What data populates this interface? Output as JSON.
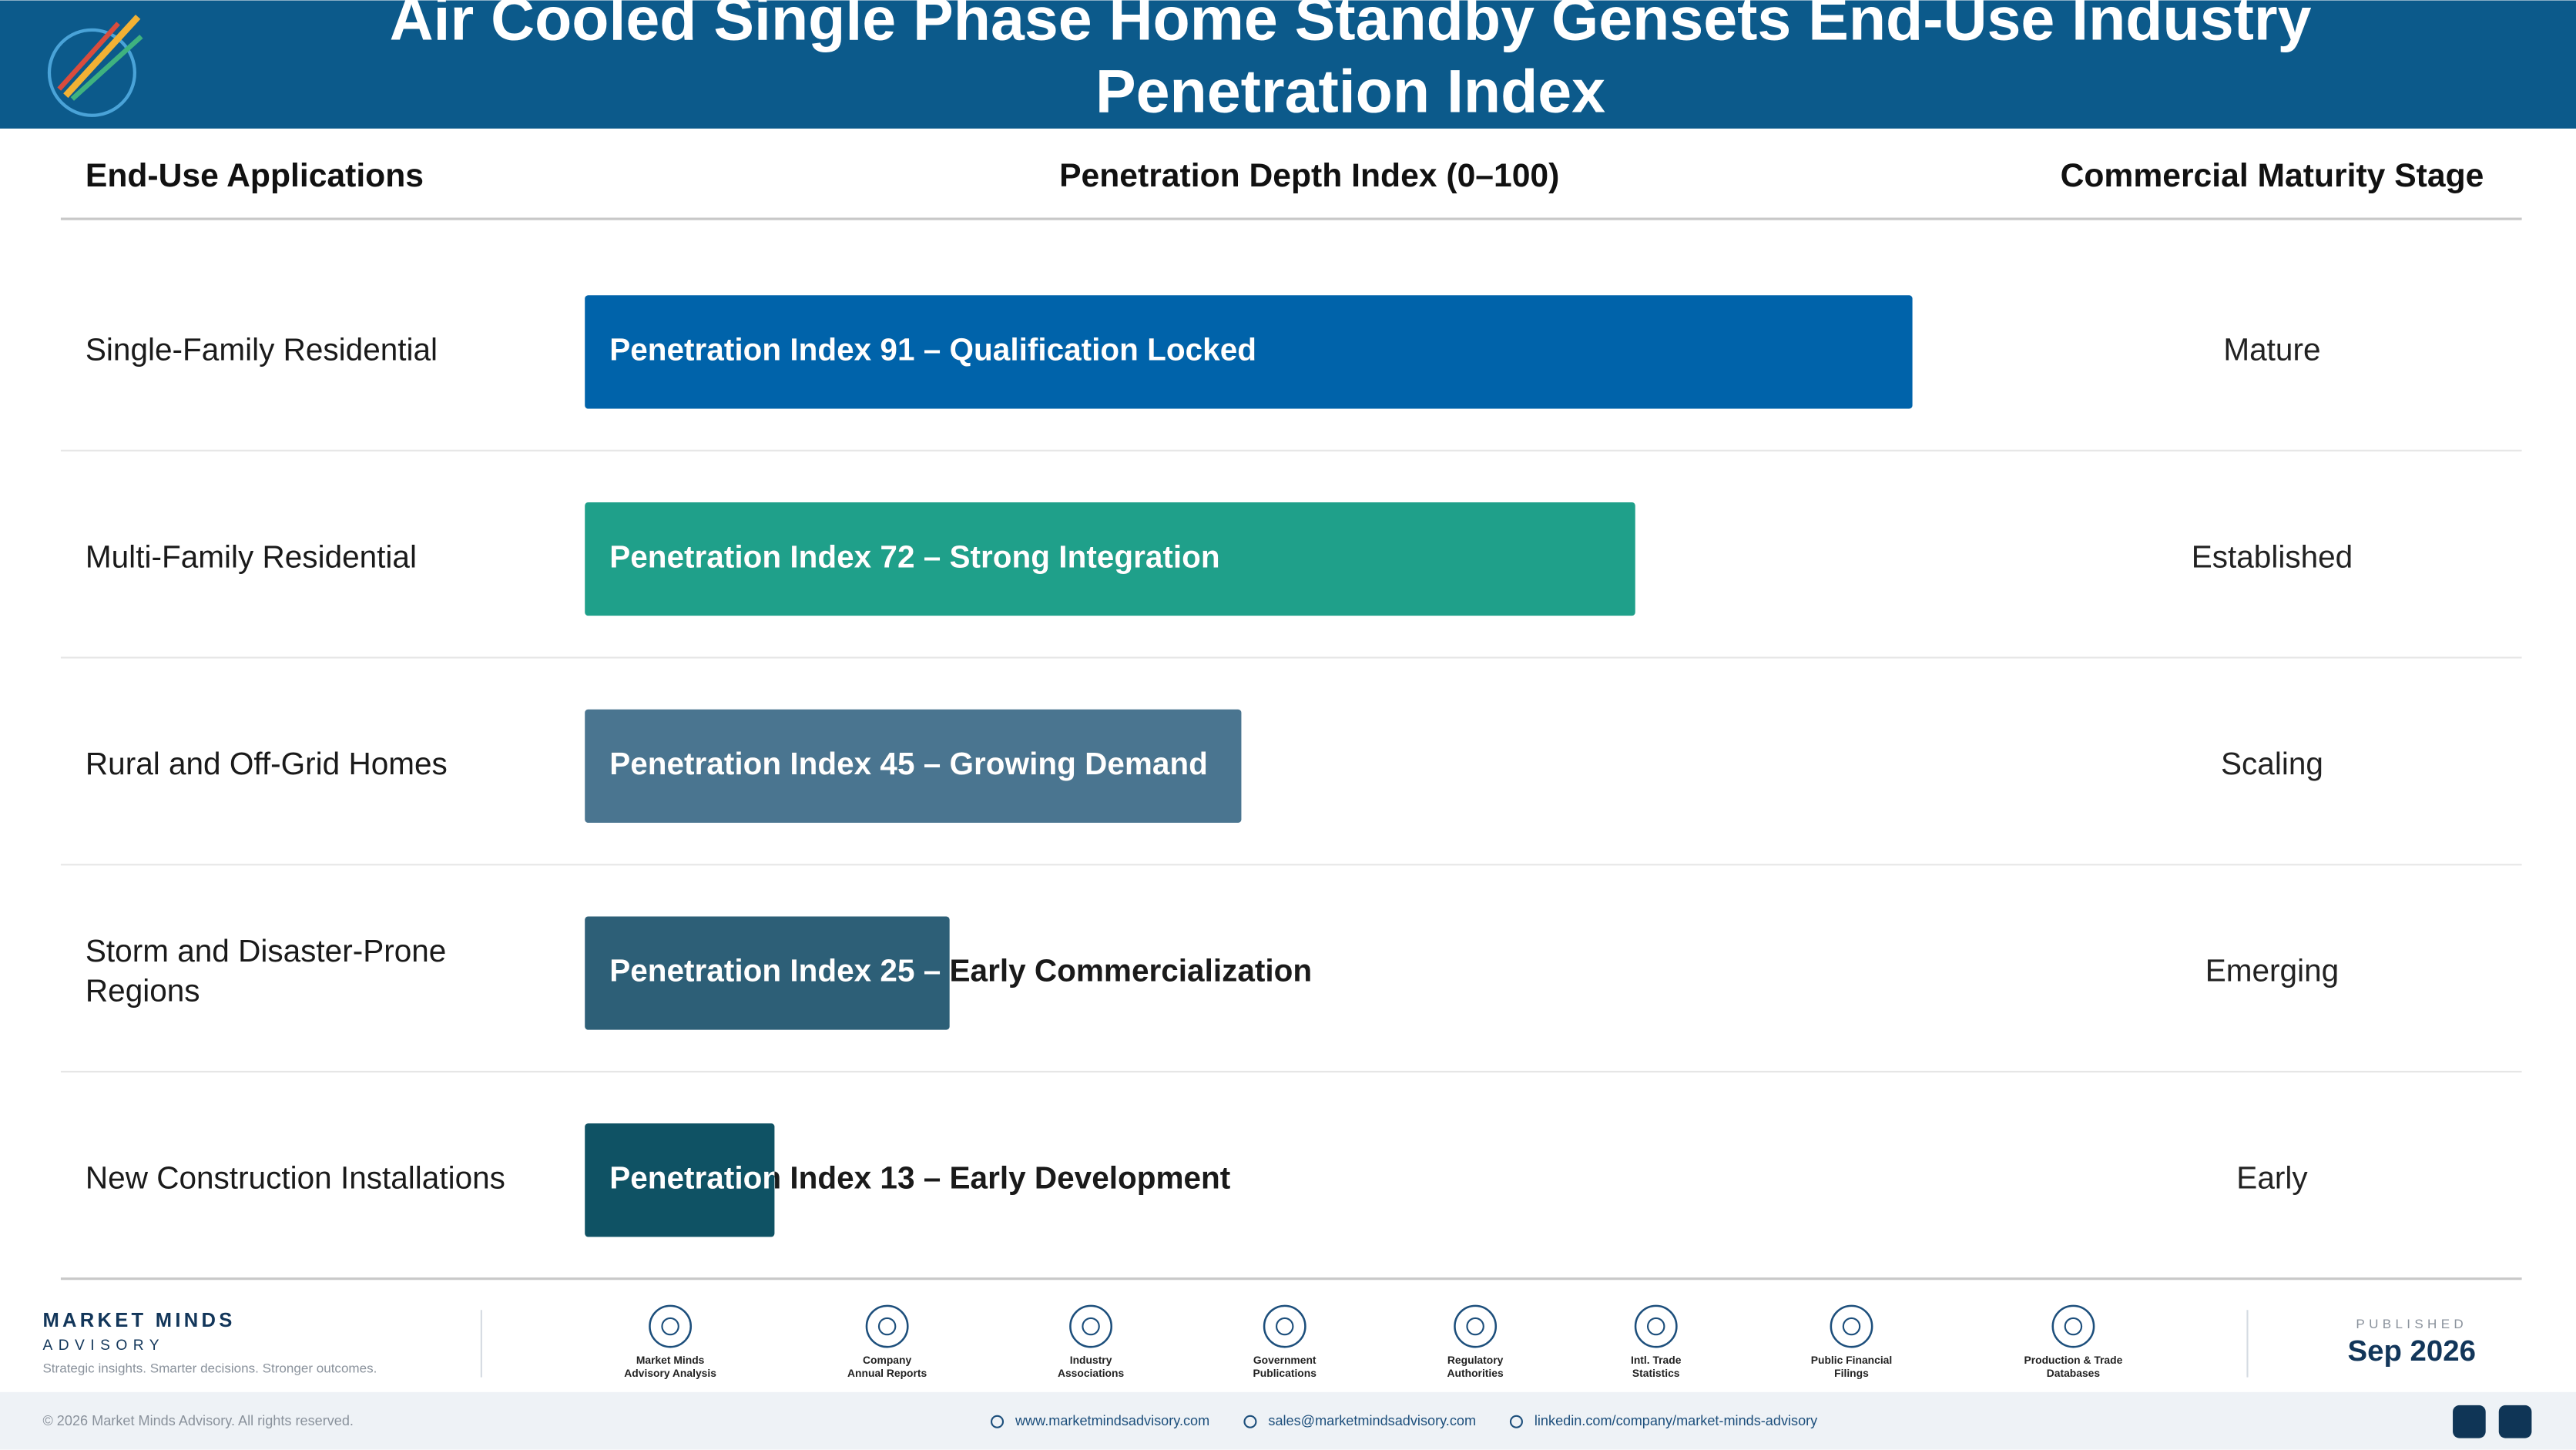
{
  "header": {
    "title": "Air Cooled Single Phase Home Standby Gensets End-Use Industry Penetration Index"
  },
  "chart_data": {
    "type": "bar",
    "column_headers": [
      "End-Use Applications",
      "Penetration Depth Index (0–100)",
      "Commercial Maturity Stage"
    ],
    "categories": [
      "Single-Family Residential",
      "Multi-Family Residential",
      "Rural and Off-Grid Homes",
      "Storm and Disaster-Prone Regions",
      "New Construction Installations"
    ],
    "values": [
      91,
      72,
      45,
      25,
      13
    ],
    "value_labels": [
      "Penetration Index 91 – Qualification Locked",
      "Penetration Index 72 – Strong Integration",
      "Penetration Index 45 – Growing Demand",
      "Penetration Index 25 – Early Commercialization",
      "Penetration Index 13 – Early Development"
    ],
    "colors": [
      "#0063aa",
      "#1fa08a",
      "#4a7590",
      "#2d5f77",
      "#0f5264"
    ],
    "stages": [
      "Mature",
      "Established",
      "Scaling",
      "Emerging",
      "Early"
    ],
    "xlim": [
      0,
      100
    ]
  },
  "footer": {
    "brand": "MARKET MINDS",
    "brand_sub": "ADVISORY",
    "tagline": "Strategic insights. Smarter decisions. Stronger outcomes.",
    "sources": [
      {
        "lines": [
          "Market Minds",
          "Advisory Analysis"
        ]
      },
      {
        "lines": [
          "Company",
          "Annual Reports"
        ]
      },
      {
        "lines": [
          "Industry",
          "Associations"
        ]
      },
      {
        "lines": [
          "Government",
          "Publications"
        ]
      },
      {
        "lines": [
          "Regulatory",
          "Authorities"
        ]
      },
      {
        "lines": [
          "Intl. Trade",
          "Statistics"
        ]
      },
      {
        "lines": [
          "Public Financial",
          "Filings"
        ]
      },
      {
        "lines": [
          "Production & Trade",
          "Databases"
        ]
      }
    ],
    "published_label": "PUBLISHED",
    "published_date": "Sep 2026",
    "copyright": "© 2026 Market Minds Advisory. All rights reserved.",
    "contacts": [
      "www.marketmindsadvisory.com",
      "sales@marketmindsadvisory.com",
      "linkedin.com/company/market-minds-advisory"
    ]
  }
}
